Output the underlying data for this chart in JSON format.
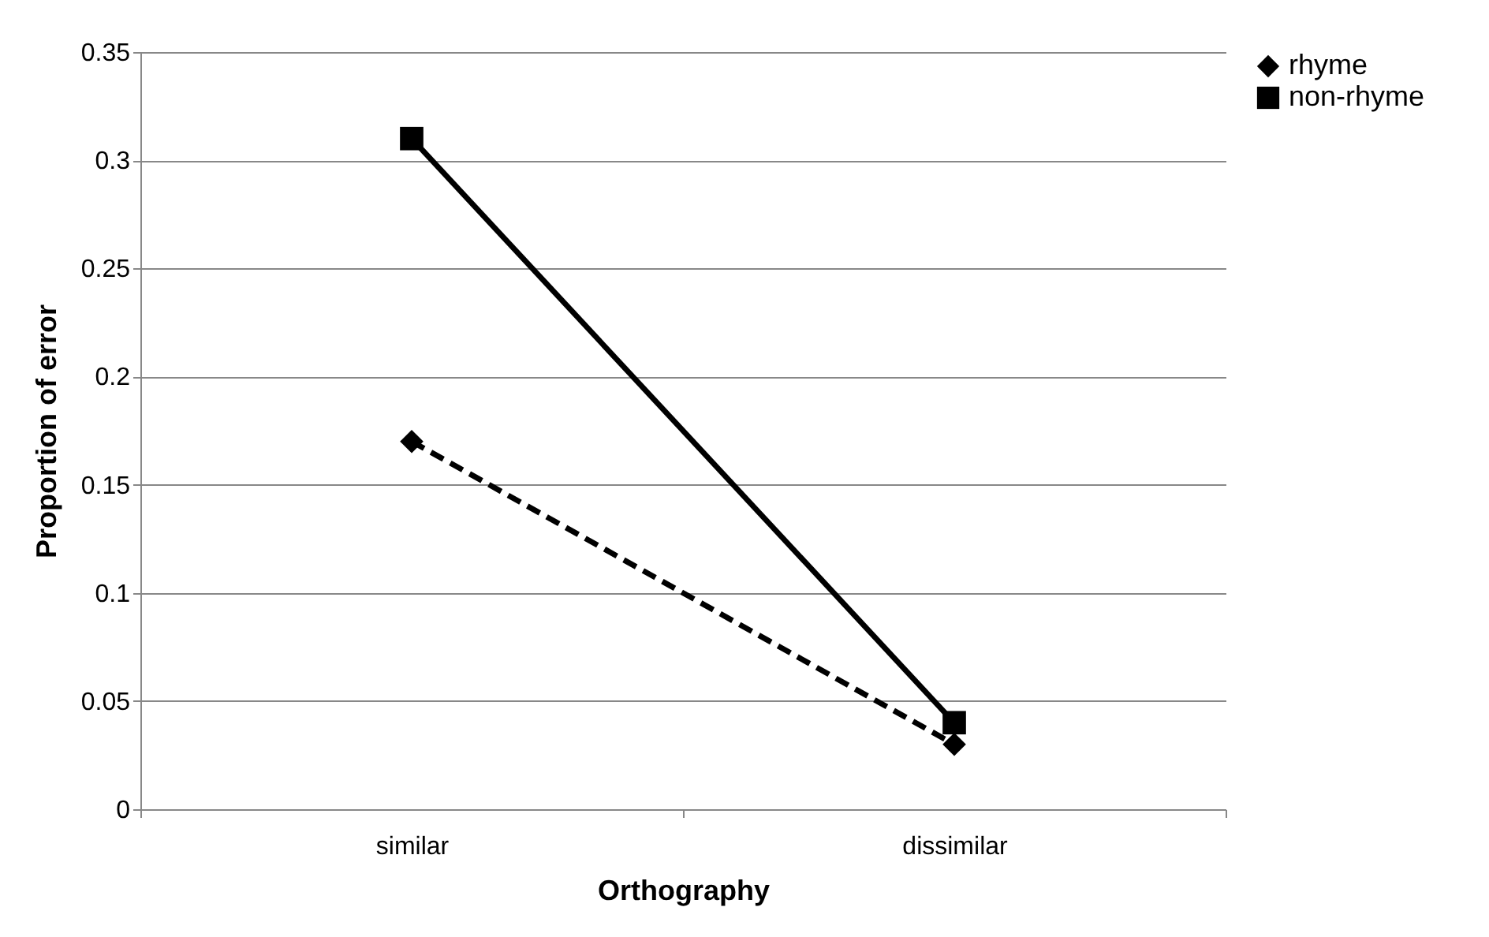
{
  "chart_data": {
    "type": "line",
    "xlabel": "Orthography",
    "ylabel": "Proportion of error",
    "categories": [
      "similar",
      "dissimilar"
    ],
    "series": [
      {
        "name": "rhyme",
        "color": "#000000",
        "values": [
          0.17,
          0.03
        ],
        "marker": "diamond",
        "line_style": "dashed"
      },
      {
        "name": "non-rhyme",
        "color": "#000000",
        "values": [
          0.31,
          0.04
        ],
        "marker": "square",
        "line_style": "solid"
      }
    ],
    "ylim": [
      0,
      0.35
    ],
    "yticks": [
      0,
      0.05,
      0.1,
      0.15,
      0.2,
      0.25,
      0.3,
      0.35
    ],
    "grid": "y",
    "legend": "right"
  }
}
